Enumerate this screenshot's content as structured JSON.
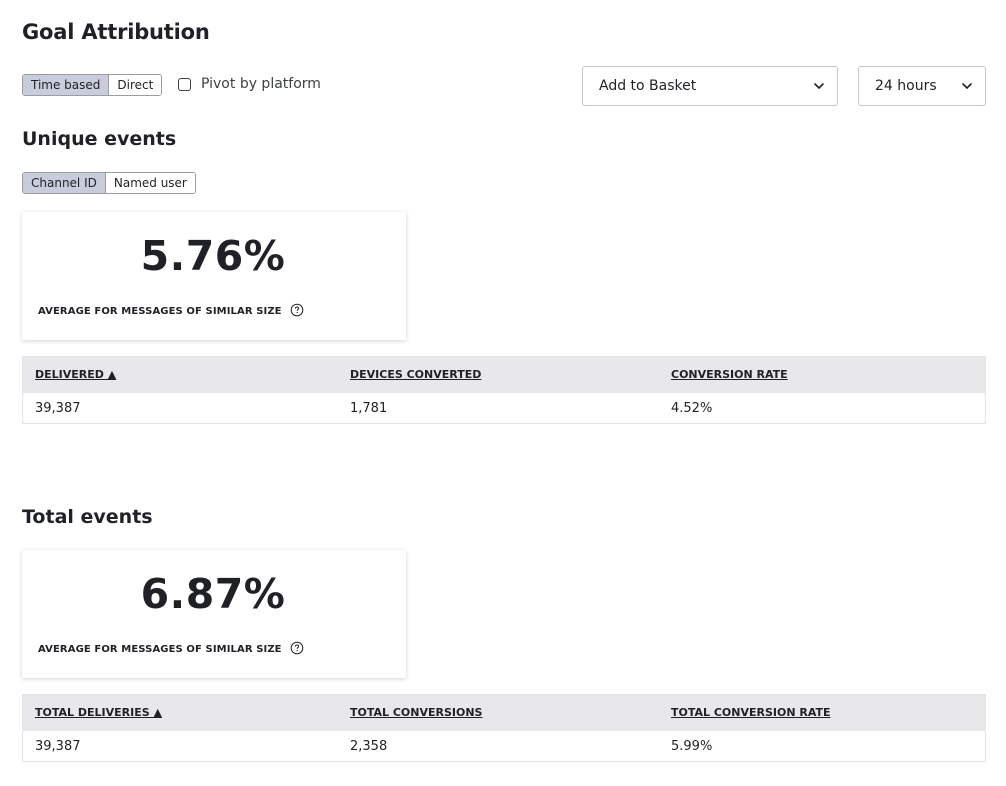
{
  "page": {
    "title": "Goal Attribution"
  },
  "attribution_toggle": {
    "options": [
      "Time based",
      "Direct"
    ],
    "selected": "Time based"
  },
  "pivot": {
    "label": "Pivot by platform",
    "checked": false
  },
  "goal_select": {
    "value": "Add to Basket",
    "icon": "chevron-down-icon"
  },
  "window_select": {
    "value": "24 hours",
    "icon": "chevron-down-icon"
  },
  "unique": {
    "title": "Unique events",
    "id_toggle": {
      "options": [
        "Channel ID",
        "Named user"
      ],
      "selected": "Channel ID"
    },
    "stat": {
      "value": "5.76%",
      "caption": "AVERAGE FOR MESSAGES OF SIMILAR SIZE",
      "help_icon": "help-circle-icon"
    },
    "table": {
      "headers": [
        "DELIVERED ▲",
        "DEVICES CONVERTED",
        "CONVERSION RATE"
      ],
      "rows": [
        [
          "39,387",
          "1,781",
          "4.52%"
        ]
      ]
    }
  },
  "total": {
    "title": "Total events",
    "stat": {
      "value": "6.87%",
      "caption": "AVERAGE FOR MESSAGES OF SIMILAR SIZE",
      "help_icon": "help-circle-icon"
    },
    "table": {
      "headers": [
        "TOTAL DELIVERIES ▲",
        "TOTAL CONVERSIONS",
        "TOTAL CONVERSION RATE"
      ],
      "rows": [
        [
          "39,387",
          "2,358",
          "5.99%"
        ]
      ]
    }
  },
  "colors": {
    "text": "#1f2126",
    "toggle_active_bg": "#c9ccda",
    "table_header_bg": "#e8e8ea",
    "border": "#c6c8cd"
  }
}
